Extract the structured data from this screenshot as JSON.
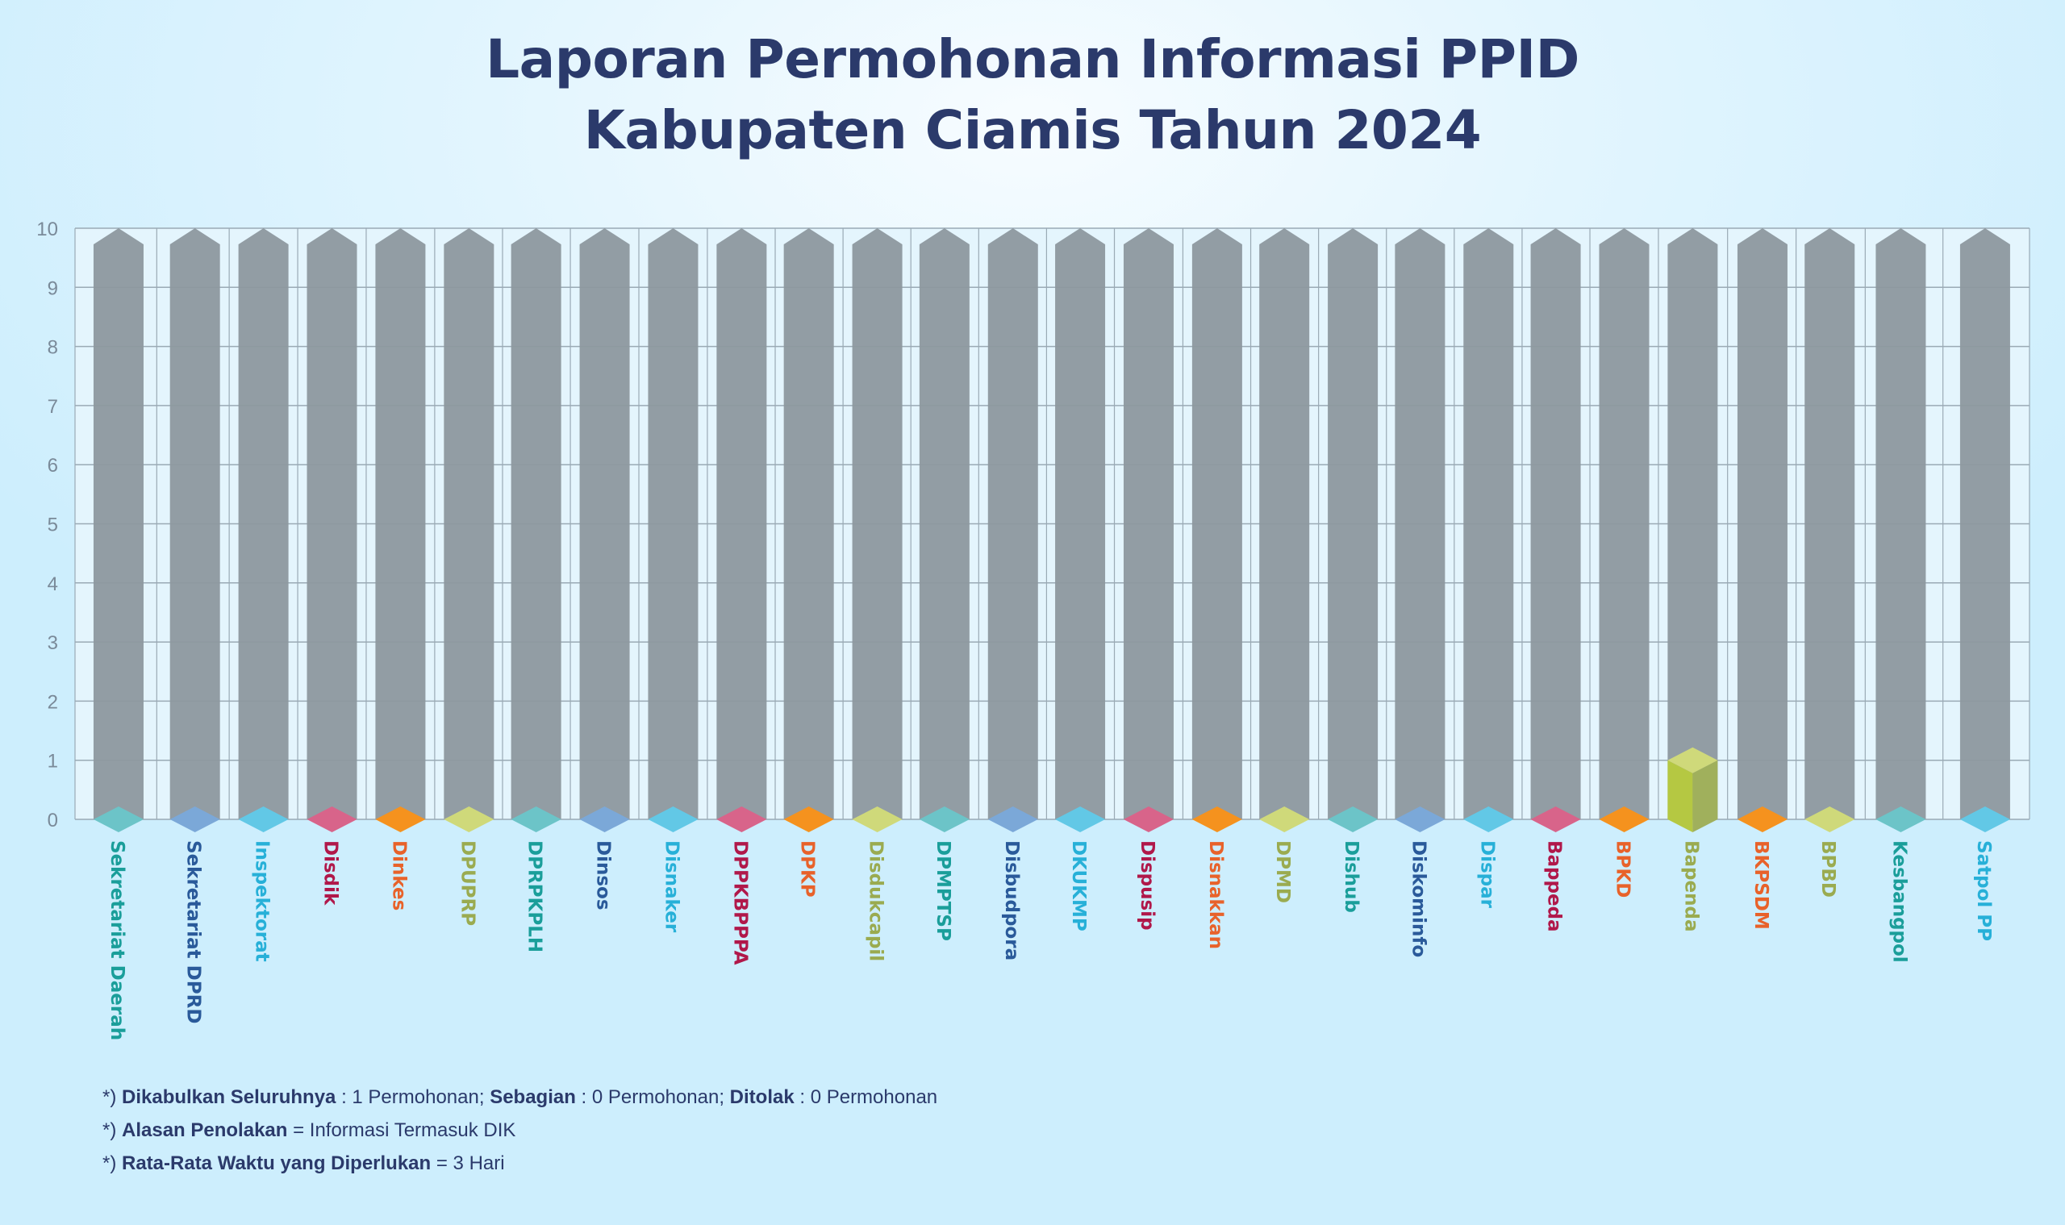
{
  "title": {
    "line1": "Laporan Permohonan Informasi PPID",
    "line2": "Kabupaten Ciamis Tahun 2024"
  },
  "chart_data": {
    "type": "bar",
    "title": "Laporan Permohonan Informasi PPID Kabupaten Ciamis Tahun 2024",
    "categories": [
      "Sekretariat Daerah",
      "Sekretariat DPRD",
      "Inspektorat",
      "Disdik",
      "Dinkes",
      "DPUPRP",
      "DPRPKPLH",
      "Dinsos",
      "Disnaker",
      "DPPKBPPPA",
      "DPKP",
      "Disdukcapil",
      "DPMPTSP",
      "Disbudpora",
      "DKUKMP",
      "Dispusip",
      "Disnakkan",
      "DPMD",
      "Dishub",
      "Diskominfo",
      "Dispar",
      "Bappeda",
      "BPKD",
      "Bapenda",
      "BKPSDM",
      "BPBD",
      "Kesbangpol",
      "Satpol PP"
    ],
    "values": [
      0,
      0,
      0,
      0,
      0,
      0,
      0,
      0,
      0,
      0,
      0,
      0,
      0,
      0,
      0,
      0,
      0,
      0,
      0,
      0,
      0,
      0,
      0,
      1,
      0,
      0,
      0,
      0
    ],
    "ylim": [
      0,
      10
    ],
    "yticks": [
      "0",
      "1",
      "2",
      "3",
      "4",
      "5",
      "6",
      "7",
      "8",
      "9",
      "10"
    ],
    "grid": true,
    "label_colors": [
      "#1a9e9a",
      "#2a5a9a",
      "#27b0d8",
      "#b0184a",
      "#e8622a",
      "#9aab50",
      "#1a9e9a",
      "#2a5a9a",
      "#27b0d8",
      "#b0184a",
      "#e8622a",
      "#9aab50",
      "#1a9e9a",
      "#2a5a9a",
      "#27b0d8",
      "#b0184a",
      "#e8622a",
      "#9aab50",
      "#1a9e9a",
      "#2a5a9a",
      "#27b0d8",
      "#b0184a",
      "#e8622a",
      "#9aab50",
      "#e8622a",
      "#9aab50",
      "#1a9e9a",
      "#27b0d8"
    ],
    "bar_colors": [
      "#6cc4c8",
      "#7ba8d8",
      "#62c8e6",
      "#d8648a",
      "#f5921e",
      "#cfd97a",
      "#6cc4c8",
      "#7ba8d8",
      "#62c8e6",
      "#d8648a",
      "#f5921e",
      "#cfd97a",
      "#6cc4c8",
      "#7ba8d8",
      "#62c8e6",
      "#d8648a",
      "#f5921e",
      "#cfd97a",
      "#6cc4c8",
      "#7ba8d8",
      "#62c8e6",
      "#d8648a",
      "#f5921e",
      "#b5c842",
      "#f5921e",
      "#cfd97a",
      "#6cc4c8",
      "#62c8e6"
    ],
    "background_bar_color": "#8d989f"
  },
  "notes": [
    {
      "prefix": "*) ",
      "parts": [
        {
          "b": "Dikabulkan Seluruhnya",
          "t": " : 1 Permohonan; "
        },
        {
          "b": "Sebagian",
          "t": " : 0 Permohonan; "
        },
        {
          "b": "Ditolak",
          "t": " : 0 Permohonan"
        }
      ]
    },
    {
      "prefix": "*) ",
      "parts": [
        {
          "b": "Alasan Penolakan",
          "t": " = Informasi Termasuk DIK"
        }
      ]
    },
    {
      "prefix": "*) ",
      "parts": [
        {
          "b": "Rata-Rata Waktu yang Diperlukan",
          "t": " = 3 Hari"
        }
      ]
    }
  ]
}
